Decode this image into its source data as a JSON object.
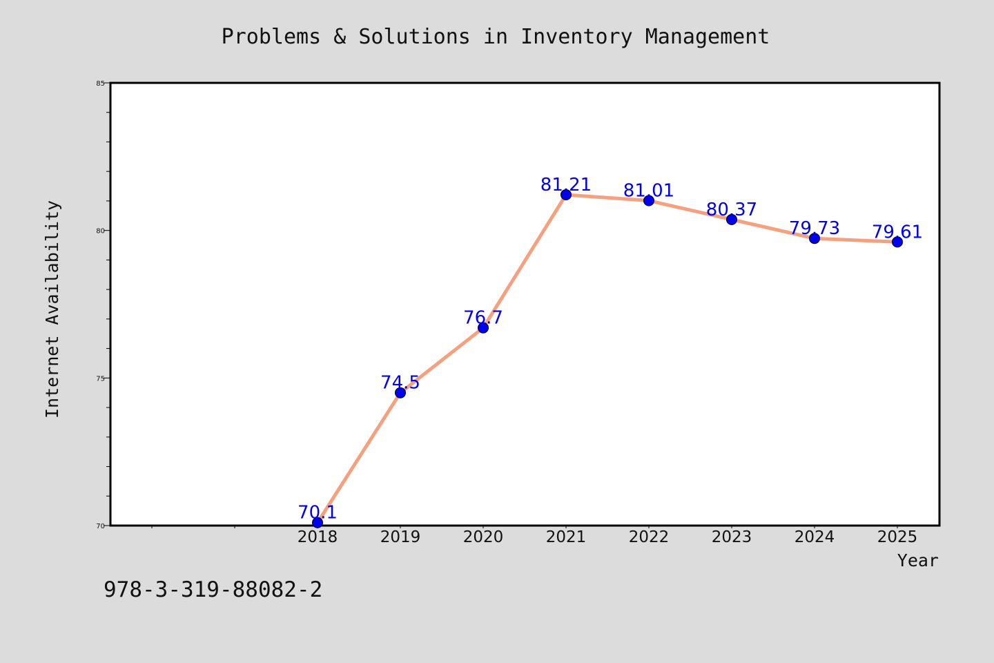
{
  "chart_data": {
    "type": "line",
    "title": "Problems & Solutions in Inventory Management",
    "xlabel": "Year",
    "ylabel": "Internet Availability",
    "categories": [
      "2018",
      "2019",
      "2020",
      "2021",
      "2022",
      "2023",
      "2024",
      "2025"
    ],
    "series": [
      {
        "values": [
          70.1,
          74.5,
          76.7,
          81.21,
          81.01,
          80.37,
          79.73,
          79.61
        ],
        "data_labels": [
          "70.1",
          "74.5",
          "76.7",
          "81.21",
          "81.01",
          "80.37",
          "79.73",
          "79.61"
        ]
      }
    ],
    "ylim": [
      70,
      85
    ],
    "yticks": [
      "70",
      "75",
      "80",
      "85"
    ],
    "grid": false,
    "legend": "none",
    "colors": {
      "line": "#f5a07e",
      "marker": "#0000ee",
      "label": "#0000ee",
      "background": "#dcdcdc",
      "plot_area": "#ffffff"
    }
  },
  "footer": {
    "isbn": "978-3-319-88082-2"
  }
}
